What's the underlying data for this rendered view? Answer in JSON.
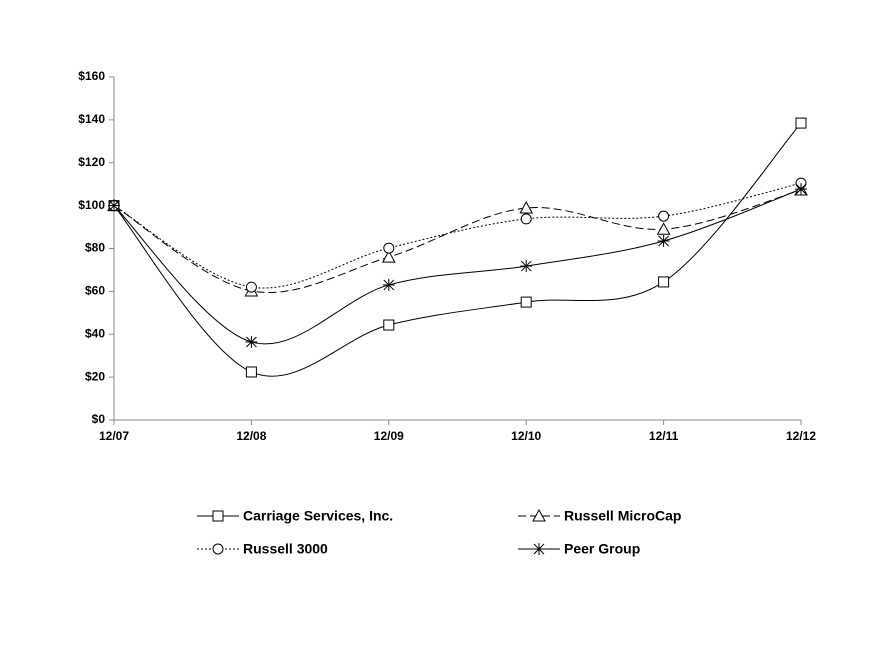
{
  "chart_data": {
    "type": "line",
    "categories": [
      "12/07",
      "12/08",
      "12/09",
      "12/10",
      "12/11",
      "12/12"
    ],
    "series": [
      {
        "name": "Carriage Services, Inc.",
        "color": "#000000",
        "line_style": "solid",
        "marker": "square",
        "values": [
          100,
          22.4,
          44.3,
          55,
          64.4,
          138.5
        ]
      },
      {
        "name": "Russell MicroCap",
        "color": "#000000",
        "line_style": "dashed",
        "marker": "triangle",
        "values": [
          100,
          60.2,
          76,
          98.9,
          89,
          107.3
        ]
      },
      {
        "name": "Russell 3000",
        "color": "#000000",
        "line_style": "dotted",
        "marker": "circle",
        "values": [
          100,
          62,
          80.2,
          93.8,
          95.1,
          110.5
        ]
      },
      {
        "name": "Peer Group",
        "color": "#000000",
        "line_style": "solid",
        "marker": "star",
        "values": [
          100,
          36.4,
          63,
          71.8,
          83.5,
          107.7
        ]
      }
    ],
    "ylim": [
      0,
      160
    ],
    "yticks": [
      {
        "value": 0,
        "label": "$0"
      },
      {
        "value": 20,
        "label": "$20"
      },
      {
        "value": 40,
        "label": "$40"
      },
      {
        "value": 60,
        "label": "$60"
      },
      {
        "value": 80,
        "label": "$80"
      },
      {
        "value": 100,
        "label": "$100"
      },
      {
        "value": 120,
        "label": "$120"
      },
      {
        "value": 140,
        "label": "$140"
      },
      {
        "value": 160,
        "label": "$160"
      }
    ],
    "smooth": true,
    "grid": false
  }
}
